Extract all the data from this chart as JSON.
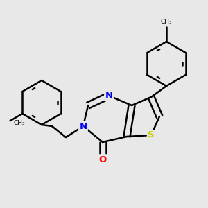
{
  "bg_color": "#e8e8e8",
  "bond_color": "#000000",
  "N_color": "#0000ee",
  "O_color": "#ff0000",
  "S_color": "#cccc00",
  "bond_width": 1.8,
  "font_size": 9.5,
  "xlim": [
    -1.6,
    1.6
  ],
  "ylim": [
    -1.6,
    1.6
  ]
}
